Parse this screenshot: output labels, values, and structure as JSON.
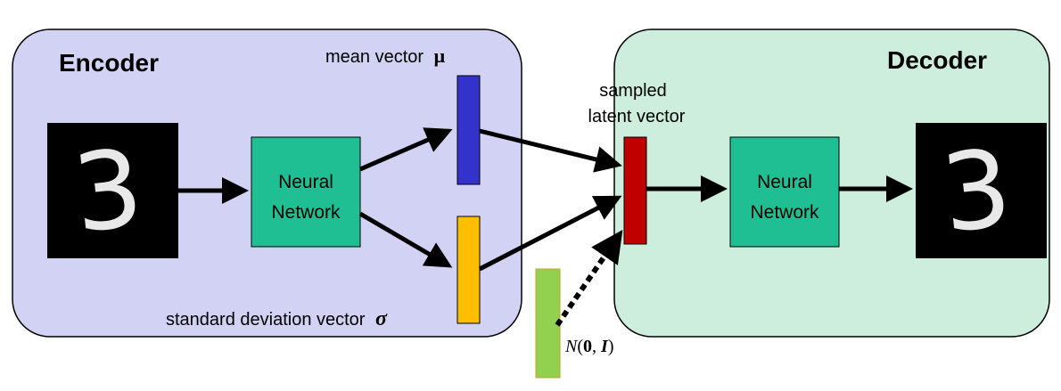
{
  "encoder": {
    "title": "Encoder",
    "network_label": [
      "Neural",
      "Network"
    ],
    "mean_label": "mean vector",
    "mean_symbol": "μ",
    "std_label": "standard deviation vector",
    "std_symbol": "σ",
    "input_digit": "3"
  },
  "decoder": {
    "title": "Decoder",
    "network_label": [
      "Neural",
      "Network"
    ],
    "output_digit": "3"
  },
  "latent": {
    "label": [
      "sampled",
      "latent vector"
    ]
  },
  "noise": {
    "label_prefix": "N",
    "label_open": "(",
    "label_zero": "0",
    "label_comma": ", ",
    "label_identity": "I",
    "label_close": ")"
  },
  "colors": {
    "encoder_bg": "#d2d2f4",
    "decoder_bg": "#cdeedd",
    "network_box": "#1fbf93",
    "mean_vector": "#3333cc",
    "std_vector": "#ffbf00",
    "latent_vector": "#c00000",
    "noise_vector": "#92d050"
  }
}
